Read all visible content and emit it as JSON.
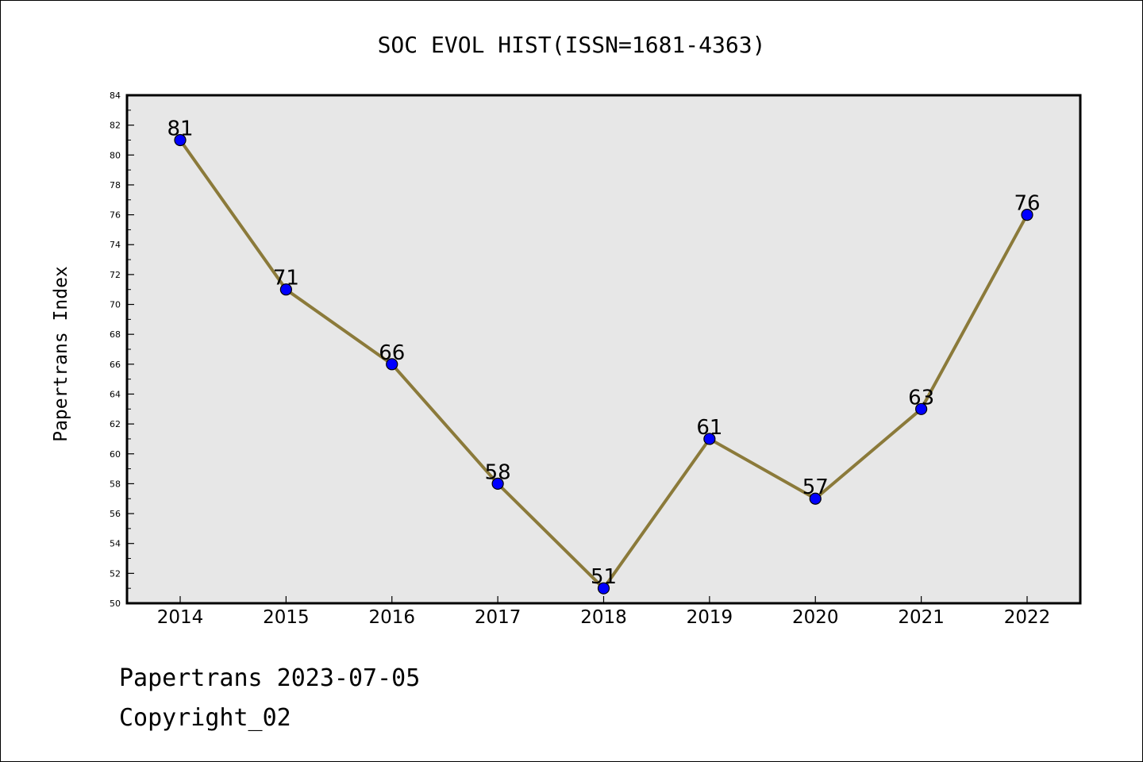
{
  "chart_data": {
    "type": "line",
    "title": "SOC EVOL HIST(ISSN=1681-4363)",
    "xlabel": "",
    "ylabel": "Papertrans Index",
    "categories": [
      "2014",
      "2015",
      "2016",
      "2017",
      "2018",
      "2019",
      "2020",
      "2021",
      "2022"
    ],
    "series": [
      {
        "values": [
          81,
          71,
          66,
          58,
          51,
          61,
          57,
          63,
          76
        ]
      }
    ],
    "data_labels": [
      "81",
      "71",
      "66",
      "58",
      "51",
      "61",
      "57",
      "63",
      "76"
    ],
    "ylim": [
      50,
      84
    ],
    "y_ticks": [
      "50",
      "52",
      "54",
      "56",
      "58",
      "60",
      "62",
      "64",
      "66",
      "68",
      "70",
      "72",
      "74",
      "76",
      "78",
      "80",
      "82",
      "84"
    ],
    "grid": false,
    "plot_background": "#e7e7e7",
    "line_color": "#8b7a3a",
    "marker_color": "#0000ff"
  },
  "footer": {
    "line1": "Papertrans 2023-07-05",
    "line2": "Copyright_02"
  }
}
